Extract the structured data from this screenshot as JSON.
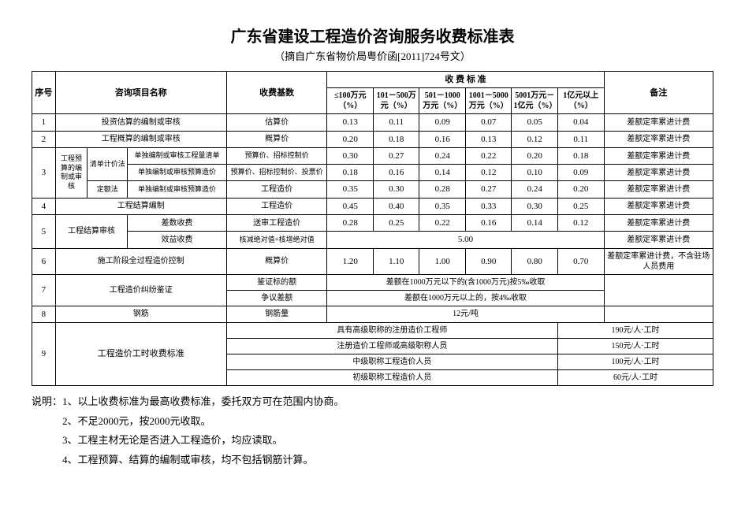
{
  "title": "广东省建设工程造价咨询服务收费标准表",
  "subtitle": "（摘自广东省物价局粤价函[2011]724号文）",
  "head": {
    "seq": "序号",
    "name": "咨询项目名称",
    "base": "收费基数",
    "rateGroup": "收  费  标  准",
    "note": "备注",
    "rateCols": [
      "≤100万元（%）",
      "101－500万元（%）",
      "501－1000万元（%）",
      "1001－5000万元（%）",
      "5001万元－1亿元（%）",
      "1亿元以上（%）"
    ]
  },
  "row1": {
    "seq": "1",
    "name": "投资估算的编制或审核",
    "base": "估算价",
    "r": [
      "0.13",
      "0.11",
      "0.09",
      "0.07",
      "0.05",
      "0.04"
    ],
    "note": "差额定率累进计费"
  },
  "row2": {
    "seq": "2",
    "name": "工程概算的编制或审核",
    "base": "概算价",
    "r": [
      "0.20",
      "0.18",
      "0.16",
      "0.13",
      "0.12",
      "0.11"
    ],
    "note": "差额定率累进计费"
  },
  "row3a": {
    "seq": "3",
    "nameA": "工程预算的编制或审核",
    "nameB": "清单计价法",
    "nameC": "单独编制或审核工程量清单",
    "base": "预算价、招标控制价",
    "r": [
      "0.30",
      "0.27",
      "0.24",
      "0.22",
      "0.20",
      "0.18"
    ],
    "note": "差额定率累进计费"
  },
  "row3b": {
    "nameC": "单独编制或审核预算造价",
    "base": "预算价、招标控制价、投票价",
    "r": [
      "0.18",
      "0.16",
      "0.14",
      "0.12",
      "0.10",
      "0.09"
    ],
    "note": "差额定率累进计费"
  },
  "row3c": {
    "nameB": "定额法",
    "nameC": "单独编制或审核预算造价",
    "base": "工程造价",
    "r": [
      "0.35",
      "0.30",
      "0.28",
      "0.27",
      "0.24",
      "0.20"
    ],
    "note": "差额定率累进计费"
  },
  "row4": {
    "seq": "4",
    "name": "工程结算编制",
    "base": "工程造价",
    "r": [
      "0.45",
      "0.40",
      "0.35",
      "0.33",
      "0.30",
      "0.25"
    ],
    "note": "差额定率累进计费"
  },
  "row5a": {
    "seq": "5",
    "name": "工程结算审核",
    "sub": "差数收费",
    "base": "送审工程造价",
    "r": [
      "0.28",
      "0.25",
      "0.22",
      "0.16",
      "0.14",
      "0.12"
    ],
    "note": "差额定率累进计费"
  },
  "row5b": {
    "sub": "效益收费",
    "base": "核减绝对值+核增绝对值",
    "merged": "5.00",
    "note": "差额定率累进计费"
  },
  "row6": {
    "seq": "6",
    "name": "施工阶段全过程造价控制",
    "base": "概算价",
    "r": [
      "1.20",
      "1.10",
      "1.00",
      "0.90",
      "0.80",
      "0.70"
    ],
    "note": "差额定率累进计费，不含驻场人员费用"
  },
  "row7a": {
    "seq": "7",
    "name": "工程造价纠纷鉴证",
    "base": "鉴证标的额",
    "merged": "差额在1000万元以下的(含1000万元)按5‰收取"
  },
  "row7b": {
    "base": "争议差额",
    "merged": "差额在1000万元以上的，按4‰收取"
  },
  "row8": {
    "seq": "8",
    "name": "钢筋",
    "base": "钢筋量",
    "merged": "12元/吨"
  },
  "row9": {
    "seq": "9",
    "name": "工程造价工时收费标准",
    "lines": [
      {
        "role": "具有高级职称的注册造价工程师",
        "fee": "190元/人·工时"
      },
      {
        "role": "注册造价工程师或高级职称人员",
        "fee": "150元/人·工时"
      },
      {
        "role": "中级职称工程造价人员",
        "fee": "100元/人·工时"
      },
      {
        "role": "初级职称工程造价人员",
        "fee": "60元/人·工时"
      }
    ]
  },
  "notes": [
    "说明：1、以上收费标准为最高收费标准，委托双方可在范围内协商。",
    "2、不足2000元，按2000元收取。",
    "3、工程主材无论是否进入工程造价，均应读取。",
    "4、工程预算、结算的编制或审核，均不包括钢筋计算。"
  ]
}
